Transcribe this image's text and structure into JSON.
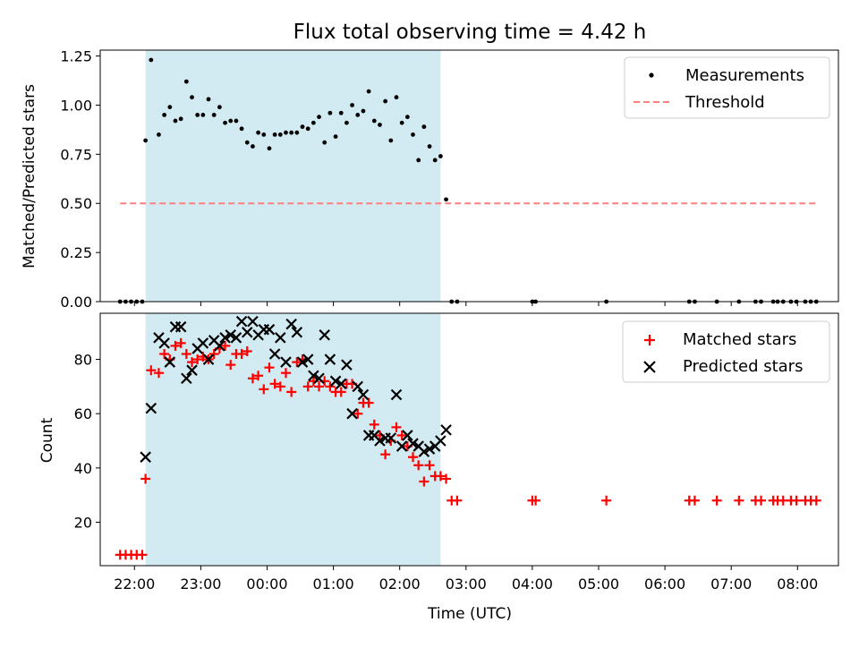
{
  "title": "Flux total observing time = 4.42 h",
  "chart_data": [
    {
      "type": "scatter",
      "ylabel": "Matched/Predicted stars",
      "xlabel": "",
      "ylim": [
        0,
        1.28
      ],
      "yticks": [
        0,
        0.25,
        0.5,
        0.75,
        1.0,
        1.25
      ],
      "ytick_labels": [
        "0.00",
        "0.25",
        "0.50",
        "0.75",
        "1.00",
        "1.25"
      ],
      "legend_position": "top-right",
      "shaded_range": [
        "22:10",
        "02:37"
      ],
      "shade_color": "#add8e6",
      "series": [
        {
          "name": "Measurements",
          "marker": "dot",
          "color": "#000000",
          "x": [
            "21:47",
            "21:52",
            "21:57",
            "22:02",
            "22:07",
            "22:10",
            "22:15",
            "22:22",
            "22:27",
            "22:32",
            "22:37",
            "22:42",
            "22:47",
            "22:52",
            "22:57",
            "23:02",
            "23:07",
            "23:12",
            "23:17",
            "23:22",
            "23:27",
            "23:32",
            "23:37",
            "23:42",
            "23:47",
            "23:52",
            "23:57",
            "00:02",
            "00:07",
            "00:12",
            "00:17",
            "00:22",
            "00:27",
            "00:32",
            "00:37",
            "00:42",
            "00:47",
            "00:52",
            "00:57",
            "01:02",
            "01:07",
            "01:12",
            "01:17",
            "01:22",
            "01:27",
            "01:32",
            "01:37",
            "01:42",
            "01:47",
            "01:52",
            "01:57",
            "02:02",
            "02:07",
            "02:12",
            "02:17",
            "02:22",
            "02:27",
            "02:32",
            "02:37",
            "02:42",
            "02:47",
            "02:52",
            "04:00",
            "04:03",
            "05:07",
            "06:22",
            "06:27",
            "06:47",
            "07:07",
            "07:22",
            "07:27",
            "07:38",
            "07:42",
            "07:47",
            "07:54",
            "07:59",
            "08:07",
            "08:12",
            "08:17"
          ],
          "y": [
            0.0,
            0.0,
            0.0,
            0.0,
            0.0,
            0.82,
            1.23,
            0.85,
            0.95,
            0.99,
            0.92,
            0.93,
            1.12,
            1.04,
            0.95,
            0.95,
            1.03,
            0.95,
            0.99,
            0.91,
            0.92,
            0.92,
            0.88,
            0.81,
            0.79,
            0.86,
            0.85,
            0.78,
            0.85,
            0.85,
            0.86,
            0.86,
            0.86,
            0.89,
            0.88,
            0.91,
            0.94,
            0.81,
            0.96,
            0.84,
            0.96,
            0.91,
            1.0,
            0.95,
            0.97,
            1.07,
            0.92,
            0.9,
            1.02,
            0.82,
            1.04,
            0.91,
            0.94,
            0.85,
            0.72,
            0.89,
            0.79,
            0.72,
            0.74,
            0.52,
            0.0,
            0.0,
            0.0,
            0.0,
            0.0,
            0.0,
            0.0,
            0.0,
            0.0,
            0.0,
            0.0,
            0.0,
            0.0,
            0.0,
            0.0,
            0.0,
            0.0,
            0.0,
            0.0
          ]
        },
        {
          "name": "Threshold",
          "style": "dashed",
          "color": "#ff7f7f",
          "x": [
            "21:47",
            "08:17"
          ],
          "y": [
            0.5,
            0.5
          ]
        }
      ]
    },
    {
      "type": "scatter",
      "ylabel": "Count",
      "xlabel": "Time (UTC)",
      "ylim": [
        4,
        97
      ],
      "yticks": [
        20,
        40,
        60,
        80
      ],
      "ytick_labels": [
        "20",
        "40",
        "60",
        "80"
      ],
      "xtick_labels": [
        "22:00",
        "23:00",
        "00:00",
        "01:00",
        "02:00",
        "03:00",
        "04:00",
        "05:00",
        "06:00",
        "07:00",
        "08:00"
      ],
      "legend_position": "top-right",
      "shaded_range": [
        "22:10",
        "02:37"
      ],
      "shade_color": "#add8e6",
      "series": [
        {
          "name": "Matched stars",
          "marker": "plus",
          "color": "#ff0000",
          "x": [
            "21:47",
            "21:52",
            "21:57",
            "22:02",
            "22:07",
            "22:10",
            "22:15",
            "22:22",
            "22:27",
            "22:32",
            "22:37",
            "22:42",
            "22:47",
            "22:52",
            "22:57",
            "23:02",
            "23:07",
            "23:12",
            "23:17",
            "23:22",
            "23:27",
            "23:32",
            "23:37",
            "23:42",
            "23:47",
            "23:52",
            "23:57",
            "00:02",
            "00:07",
            "00:12",
            "00:17",
            "00:22",
            "00:27",
            "00:32",
            "00:37",
            "00:42",
            "00:47",
            "00:52",
            "00:57",
            "01:02",
            "01:07",
            "01:12",
            "01:17",
            "01:22",
            "01:27",
            "01:32",
            "01:37",
            "01:42",
            "01:47",
            "01:52",
            "01:57",
            "02:02",
            "02:07",
            "02:12",
            "02:17",
            "02:22",
            "02:27",
            "02:32",
            "02:37",
            "02:42",
            "02:47",
            "02:52",
            "04:00",
            "04:03",
            "05:07",
            "06:22",
            "06:27",
            "06:47",
            "07:07",
            "07:22",
            "07:27",
            "07:38",
            "07:42",
            "07:47",
            "07:54",
            "07:59",
            "08:07",
            "08:12",
            "08:17"
          ],
          "y": [
            8,
            8,
            8,
            8,
            8,
            36,
            76,
            75,
            82,
            80,
            85,
            86,
            82,
            79,
            80,
            81,
            80,
            82,
            84,
            85,
            78,
            82,
            82,
            83,
            73,
            74,
            69,
            77,
            71,
            70,
            75,
            68,
            79,
            80,
            70,
            72,
            70,
            72,
            70,
            68,
            68,
            71,
            71,
            60,
            64,
            64,
            56,
            52,
            45,
            50,
            55,
            52,
            48,
            44,
            41,
            35,
            41,
            37,
            37,
            36,
            28,
            28,
            28,
            28,
            28,
            28,
            28,
            28,
            28,
            28,
            28,
            28,
            28,
            28,
            28,
            28,
            28,
            28,
            28
          ]
        },
        {
          "name": "Predicted stars",
          "marker": "x",
          "color": "#000000",
          "x": [
            "22:10",
            "22:15",
            "22:22",
            "22:27",
            "22:32",
            "22:37",
            "22:42",
            "22:47",
            "22:52",
            "22:57",
            "23:02",
            "23:07",
            "23:12",
            "23:17",
            "23:22",
            "23:27",
            "23:32",
            "23:37",
            "23:42",
            "23:47",
            "23:52",
            "23:57",
            "00:02",
            "00:07",
            "00:12",
            "00:17",
            "00:22",
            "00:27",
            "00:32",
            "00:37",
            "00:42",
            "00:47",
            "00:52",
            "00:57",
            "01:02",
            "01:07",
            "01:12",
            "01:17",
            "01:22",
            "01:27",
            "01:32",
            "01:37",
            "01:42",
            "01:47",
            "01:52",
            "01:57",
            "02:02",
            "02:07",
            "02:12",
            "02:17",
            "02:22",
            "02:27",
            "02:32",
            "02:37",
            "02:42"
          ],
          "y": [
            44,
            62,
            88,
            86,
            79,
            92,
            92,
            73,
            76,
            84,
            86,
            80,
            87,
            85,
            88,
            89,
            88,
            94,
            90,
            94,
            89,
            91,
            91,
            82,
            88,
            79,
            93,
            90,
            79,
            80,
            74,
            73,
            89,
            80,
            72,
            71,
            78,
            60,
            70,
            67,
            52,
            52,
            50,
            51,
            51,
            67,
            48,
            52,
            49,
            48,
            46,
            47,
            48,
            50,
            54
          ]
        }
      ]
    }
  ]
}
